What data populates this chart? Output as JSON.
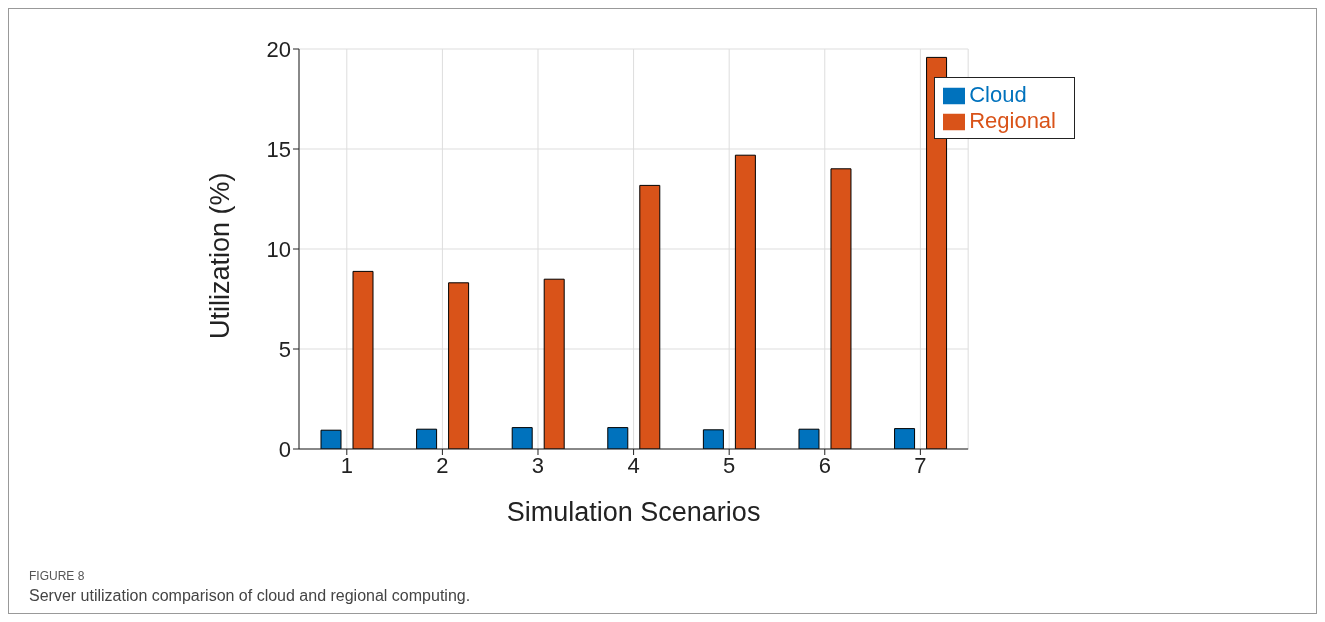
{
  "chart_data": {
    "type": "bar",
    "xlabel": "Simulation Scenarios",
    "ylabel": "Utilization (%)",
    "categories": [
      "1",
      "2",
      "3",
      "4",
      "5",
      "6",
      "7"
    ],
    "series": [
      {
        "name": "Cloud",
        "color": "#0072bd",
        "values": [
          0.94,
          0.99,
          1.07,
          1.07,
          0.96,
          0.99,
          1.02
        ]
      },
      {
        "name": "Regional",
        "color": "#d95319",
        "values": [
          8.88,
          8.31,
          8.49,
          13.18,
          14.69,
          14.01,
          19.58
        ]
      }
    ],
    "ylim": [
      0,
      20
    ],
    "yticks": [
      0,
      5,
      10,
      15,
      20
    ],
    "grid": true,
    "legend": "top right",
    "annotations": [
      "FIGURE 8",
      "Server utilization comparison of cloud and regional computing."
    ]
  }
}
